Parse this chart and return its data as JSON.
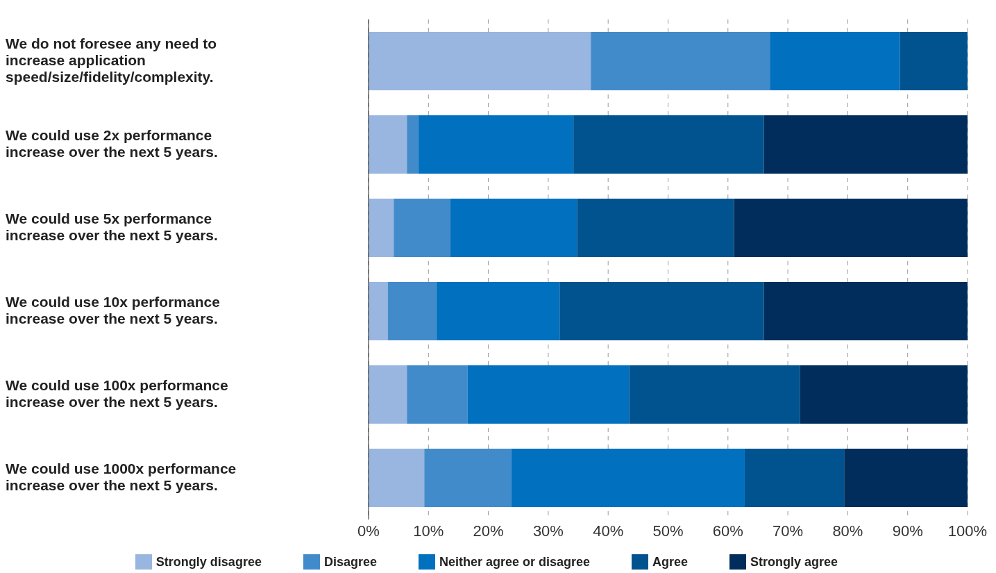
{
  "chart_data": {
    "type": "bar",
    "orientation": "horizontal",
    "stacked": true,
    "categories": [
      "We do not foresee any need to increase application speed/size/fidelity/complexity.",
      "We could use 2x performance increase over the next 5 years.",
      "We could use 5x performance increase over the next 5 years.",
      "We could use 10x performance increase over the next 5 years.",
      "We could use 100x performance increase over the next 5 years.",
      "We could use 1000x performance increase over the next 5 years."
    ],
    "series": [
      {
        "name": "Strongly disagree",
        "color": "#98b6e0",
        "values": [
          37.1,
          6.4,
          4.2,
          3.2,
          6.4,
          9.3
        ]
      },
      {
        "name": "Disagree",
        "color": "#428bca",
        "values": [
          29.9,
          1.9,
          9.4,
          8.1,
          10.1,
          14.5
        ]
      },
      {
        "name": "Neither agree or disagree",
        "color": "#0070bf",
        "values": [
          21.7,
          25.9,
          21.2,
          20.6,
          27.0,
          39.0
        ]
      },
      {
        "name": "Agree",
        "color": "#00538f",
        "values": [
          11.3,
          31.8,
          26.2,
          34.1,
          28.5,
          16.6
        ]
      },
      {
        "name": "Strongly agree",
        "color": "#002d5c",
        "values": [
          0,
          34.0,
          39.0,
          34.0,
          28.0,
          20.6
        ]
      }
    ],
    "xlim": [
      0,
      100
    ],
    "xticks": [
      {
        "value": 0,
        "label": "0%"
      },
      {
        "value": 10,
        "label": "10%"
      },
      {
        "value": 20,
        "label": "20%"
      },
      {
        "value": 30,
        "label": "30%"
      },
      {
        "value": 40,
        "label": "40%"
      },
      {
        "value": 50,
        "label": "50%"
      },
      {
        "value": 60,
        "label": "60%"
      },
      {
        "value": 70,
        "label": "70%"
      },
      {
        "value": 80,
        "label": "80%"
      },
      {
        "value": 90,
        "label": "90%"
      },
      {
        "value": 100,
        "label": "100%"
      }
    ],
    "grid": "x",
    "legend": "bottom"
  }
}
